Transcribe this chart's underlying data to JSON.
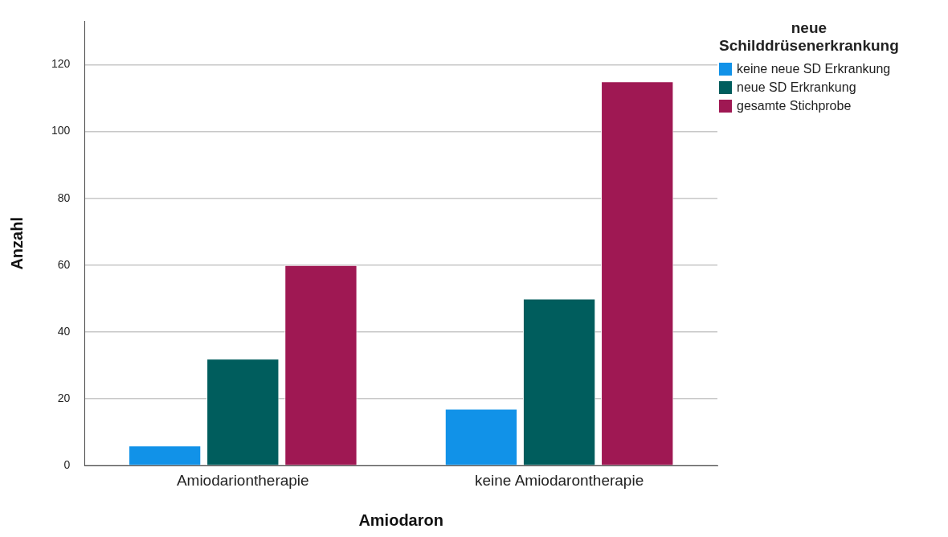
{
  "chart_data": {
    "type": "bar",
    "xlabel": "Amiodaron",
    "ylabel": "Anzahl",
    "legend_title": "neue\nSchilddrüsenerkrankung",
    "categories": [
      "Amiodariontherapie",
      "keine Amiodarontherapie"
    ],
    "series": [
      {
        "name": "keine neue SD Erkrankung",
        "color": "#1192e8",
        "values": [
          6,
          17
        ]
      },
      {
        "name": "neue SD Erkrankung",
        "color": "#005d5d",
        "values": [
          32,
          50
        ]
      },
      {
        "name": "gesamte Stichprobe",
        "color": "#9f1853",
        "values": [
          60,
          115
        ]
      }
    ],
    "ylim": [
      0,
      133
    ],
    "yticks": [
      0,
      20,
      40,
      60,
      80,
      100,
      120
    ],
    "grid": "y",
    "legend": "top right"
  }
}
